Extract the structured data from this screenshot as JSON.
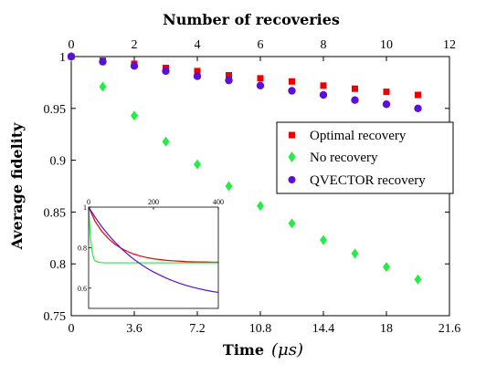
{
  "chart_data": [
    {
      "type": "scatter",
      "title": "",
      "xlabel": "Time",
      "xlabel_unit": "(μs)",
      "ylabel": "Average fidelity",
      "top_xlabel": "Number of recoveries",
      "xlim": [
        0,
        21.6
      ],
      "ylim": [
        0.75,
        1.0
      ],
      "top_xlim": [
        0,
        12
      ],
      "x_ticks": [
        "0",
        "3.6",
        "7.2",
        "10.8",
        "14.4",
        "18",
        "21.6"
      ],
      "top_x_ticks": [
        "0",
        "2",
        "4",
        "6",
        "8",
        "10",
        "12"
      ],
      "y_ticks": [
        "0.75",
        "0.8",
        "0.85",
        "0.9",
        "0.95",
        "1"
      ],
      "grid": false,
      "legend_position": "right",
      "series": [
        {
          "name": "Optimal recovery",
          "marker": "square",
          "color": "#ee0000",
          "x": [
            0,
            1.8,
            3.6,
            5.4,
            7.2,
            9.0,
            10.8,
            12.6,
            14.4,
            16.2,
            18.0,
            19.8
          ],
          "y": [
            1.0,
            0.996,
            0.993,
            0.989,
            0.986,
            0.982,
            0.979,
            0.976,
            0.972,
            0.969,
            0.966,
            0.963
          ]
        },
        {
          "name": "No recovery",
          "marker": "diamond",
          "color": "#22ee44",
          "x": [
            0,
            1.8,
            3.6,
            5.4,
            7.2,
            9.0,
            10.8,
            12.6,
            14.4,
            16.2,
            18.0,
            19.8
          ],
          "y": [
            1.0,
            0.971,
            0.943,
            0.918,
            0.896,
            0.875,
            0.856,
            0.839,
            0.823,
            0.81,
            0.797,
            0.785
          ]
        },
        {
          "name": "QVECTOR recovery",
          "marker": "circle",
          "color": "#5a10d6",
          "x": [
            0,
            1.8,
            3.6,
            5.4,
            7.2,
            9.0,
            10.8,
            12.6,
            14.4,
            16.2,
            18.0,
            19.8
          ],
          "y": [
            1.0,
            0.995,
            0.991,
            0.986,
            0.981,
            0.977,
            0.972,
            0.967,
            0.963,
            0.958,
            0.954,
            0.95
          ]
        }
      ]
    },
    {
      "type": "line",
      "title": "",
      "xlabel": "",
      "ylabel": "",
      "xlim": [
        0,
        400
      ],
      "ylim": [
        0.5,
        1.0
      ],
      "x_ticks": [
        "0",
        "200",
        "400"
      ],
      "y_ticks": [
        "0.6",
        "0.8",
        "1"
      ],
      "series": [
        {
          "color": "#ee0000",
          "x": [
            0,
            20,
            40,
            60,
            80,
            100,
            120,
            140,
            160,
            180,
            200,
            220,
            240,
            260,
            280,
            300,
            320,
            340,
            360,
            380,
            400
          ],
          "y": [
            1.0,
            0.93,
            0.882,
            0.846,
            0.818,
            0.797,
            0.781,
            0.768,
            0.758,
            0.751,
            0.745,
            0.741,
            0.737,
            0.735,
            0.733,
            0.731,
            0.73,
            0.729,
            0.729,
            0.728,
            0.728
          ]
        },
        {
          "color": "#22ee44",
          "x": [
            0,
            5,
            10,
            15,
            20,
            30,
            40,
            50,
            60,
            80,
            100,
            150,
            200,
            250,
            300,
            350,
            400
          ],
          "y": [
            1.0,
            0.86,
            0.79,
            0.75,
            0.735,
            0.728,
            0.726,
            0.725,
            0.725,
            0.725,
            0.725,
            0.725,
            0.725,
            0.725,
            0.725,
            0.725,
            0.725
          ]
        },
        {
          "color": "#5a10d6",
          "x": [
            0,
            20,
            40,
            60,
            80,
            100,
            120,
            140,
            160,
            180,
            200,
            220,
            240,
            260,
            280,
            300,
            320,
            340,
            360,
            380,
            400
          ],
          "y": [
            1.0,
            0.95,
            0.905,
            0.865,
            0.829,
            0.797,
            0.768,
            0.742,
            0.719,
            0.698,
            0.68,
            0.664,
            0.649,
            0.636,
            0.624,
            0.614,
            0.605,
            0.597,
            0.59,
            0.584,
            0.579
          ]
        }
      ]
    }
  ]
}
